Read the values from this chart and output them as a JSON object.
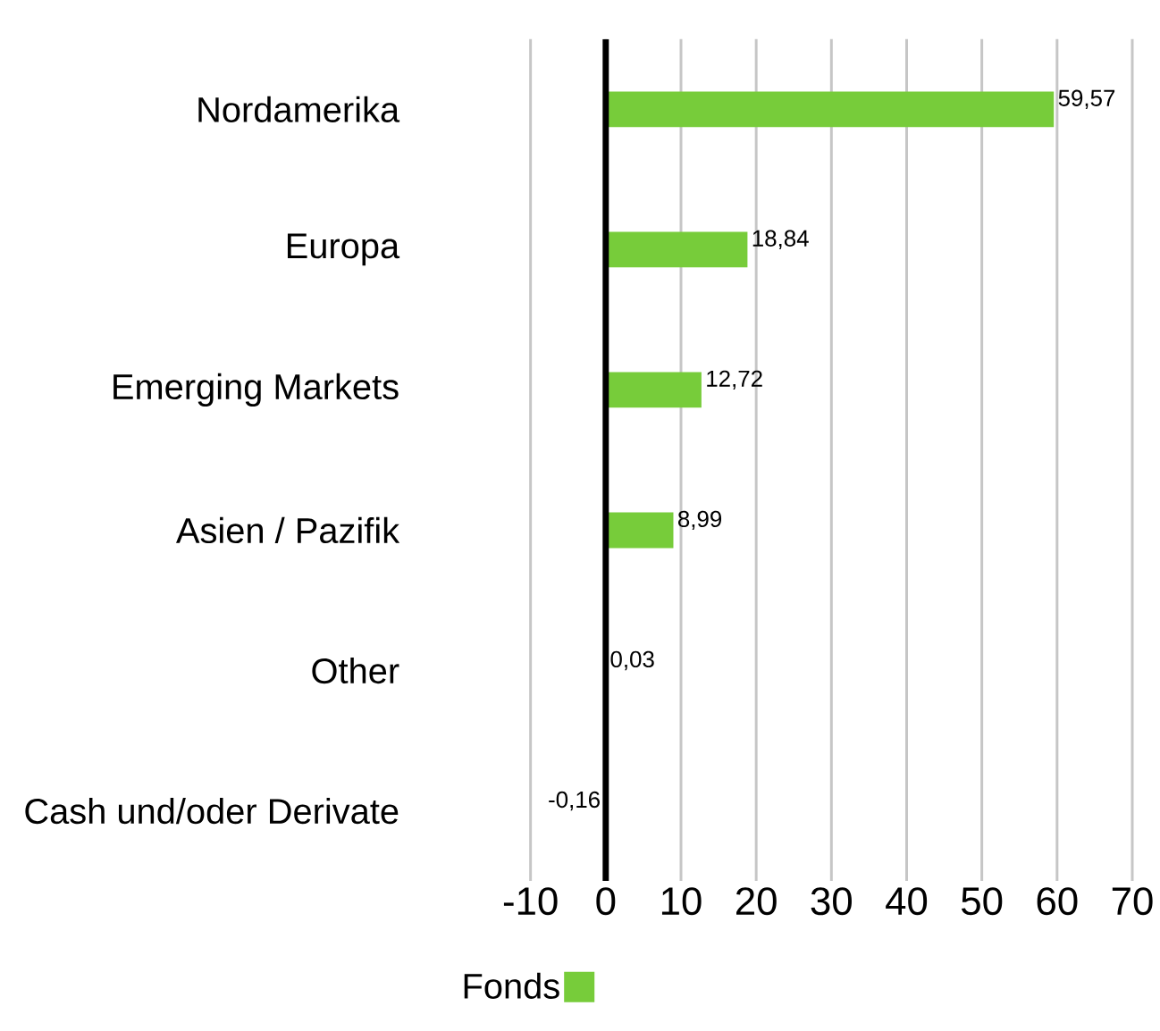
{
  "chart_data": {
    "type": "bar",
    "orientation": "horizontal",
    "categories": [
      "Nordamerika",
      "Europa",
      "Emerging Markets",
      "Asien / Pazifik",
      "Other",
      "Cash und/oder Derivate"
    ],
    "series": [
      {
        "name": "Fonds",
        "color": "#77cc3a",
        "values": [
          59.57,
          18.84,
          12.72,
          8.99,
          0.03,
          -0.16
        ],
        "value_labels": [
          "59,57",
          "18,84",
          "12,72",
          "8,99",
          "0,03",
          "-0,16"
        ]
      }
    ],
    "xlim": [
      -10,
      70
    ],
    "xticks": [
      -10,
      0,
      10,
      20,
      30,
      40,
      50,
      60,
      70
    ],
    "grid": "x",
    "legend": "bottom"
  }
}
